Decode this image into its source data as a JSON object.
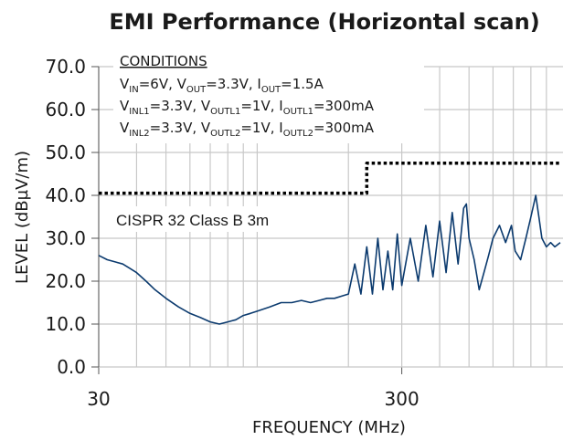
{
  "chart_data": {
    "type": "line",
    "title": "EMI Performance (Horizontal scan)",
    "xlabel": "FREQUENCY (MHz)",
    "ylabel": "LEVEL  (dBµV/m)",
    "xscale": "log",
    "xlim": [
      30,
      1000
    ],
    "ylim": [
      0,
      70
    ],
    "xticks": [
      30,
      300
    ],
    "x_minor_ticks": [
      40,
      50,
      60,
      70,
      80,
      90,
      100,
      200,
      400,
      500,
      600,
      700,
      800,
      900
    ],
    "yticks": [
      {
        "value": 0,
        "label": "0.0"
      },
      {
        "value": 10,
        "label": "10.0"
      },
      {
        "value": 20,
        "label": "20.0"
      },
      {
        "value": 30,
        "label": "30.0"
      },
      {
        "value": 40,
        "label": "40.0"
      },
      {
        "value": 50,
        "label": "50.0"
      },
      {
        "value": 60,
        "label": "60.0"
      },
      {
        "value": 70,
        "label": "70.0"
      }
    ],
    "grid": true,
    "annotation": "CISPR 32 Class B 3m",
    "conditions": {
      "heading": "CONDITIONS",
      "lines": [
        [
          "V",
          "IN",
          "=6V, V",
          "OUT",
          "=3.3V, I",
          "OUT",
          "=1.5A"
        ],
        [
          "V",
          "INL1",
          "=3.3V, V",
          "OUTL1",
          "=1V, I",
          "OUTL1",
          "=300mA"
        ],
        [
          "V",
          "INL2",
          "=3.3V, V",
          "OUTL2",
          "=1V, I",
          "OUTL2",
          "=300mA"
        ]
      ]
    },
    "series": [
      {
        "color": "#0b3a6e",
        "style": "solid",
        "x": [
          30,
          32,
          34,
          36,
          38,
          40,
          43,
          46,
          50,
          55,
          60,
          65,
          70,
          75,
          80,
          85,
          90,
          95,
          100,
          110,
          120,
          130,
          140,
          150,
          160,
          170,
          180,
          190,
          200,
          210,
          220,
          230,
          240,
          250,
          260,
          270,
          280,
          290,
          300,
          320,
          340,
          360,
          380,
          400,
          420,
          440,
          460,
          480,
          490,
          500,
          520,
          540,
          560,
          580,
          600,
          630,
          660,
          690,
          710,
          740,
          770,
          800,
          830,
          850,
          870,
          900,
          930,
          960,
          1000
        ],
        "values": [
          26,
          25,
          24.5,
          24,
          23,
          22,
          20,
          18,
          16,
          14,
          12.5,
          11.5,
          10.5,
          10,
          10.5,
          11,
          12,
          12.5,
          13,
          14,
          15,
          15,
          15.5,
          15,
          15.5,
          16,
          16,
          16.5,
          17,
          24,
          17,
          28,
          17,
          30,
          18,
          27,
          18,
          31,
          19,
          30,
          20,
          33,
          21,
          34,
          22,
          36,
          24,
          37,
          38,
          30,
          25,
          18,
          22,
          26,
          30,
          33,
          29,
          33,
          27,
          25,
          30,
          35,
          40,
          35,
          30,
          28,
          29,
          28,
          29
        ]
      },
      {
        "color": "#000000",
        "style": "dotted",
        "x": [
          30,
          230,
          230,
          1000
        ],
        "values": [
          40.5,
          40.5,
          47.5,
          47.5
        ]
      }
    ]
  }
}
